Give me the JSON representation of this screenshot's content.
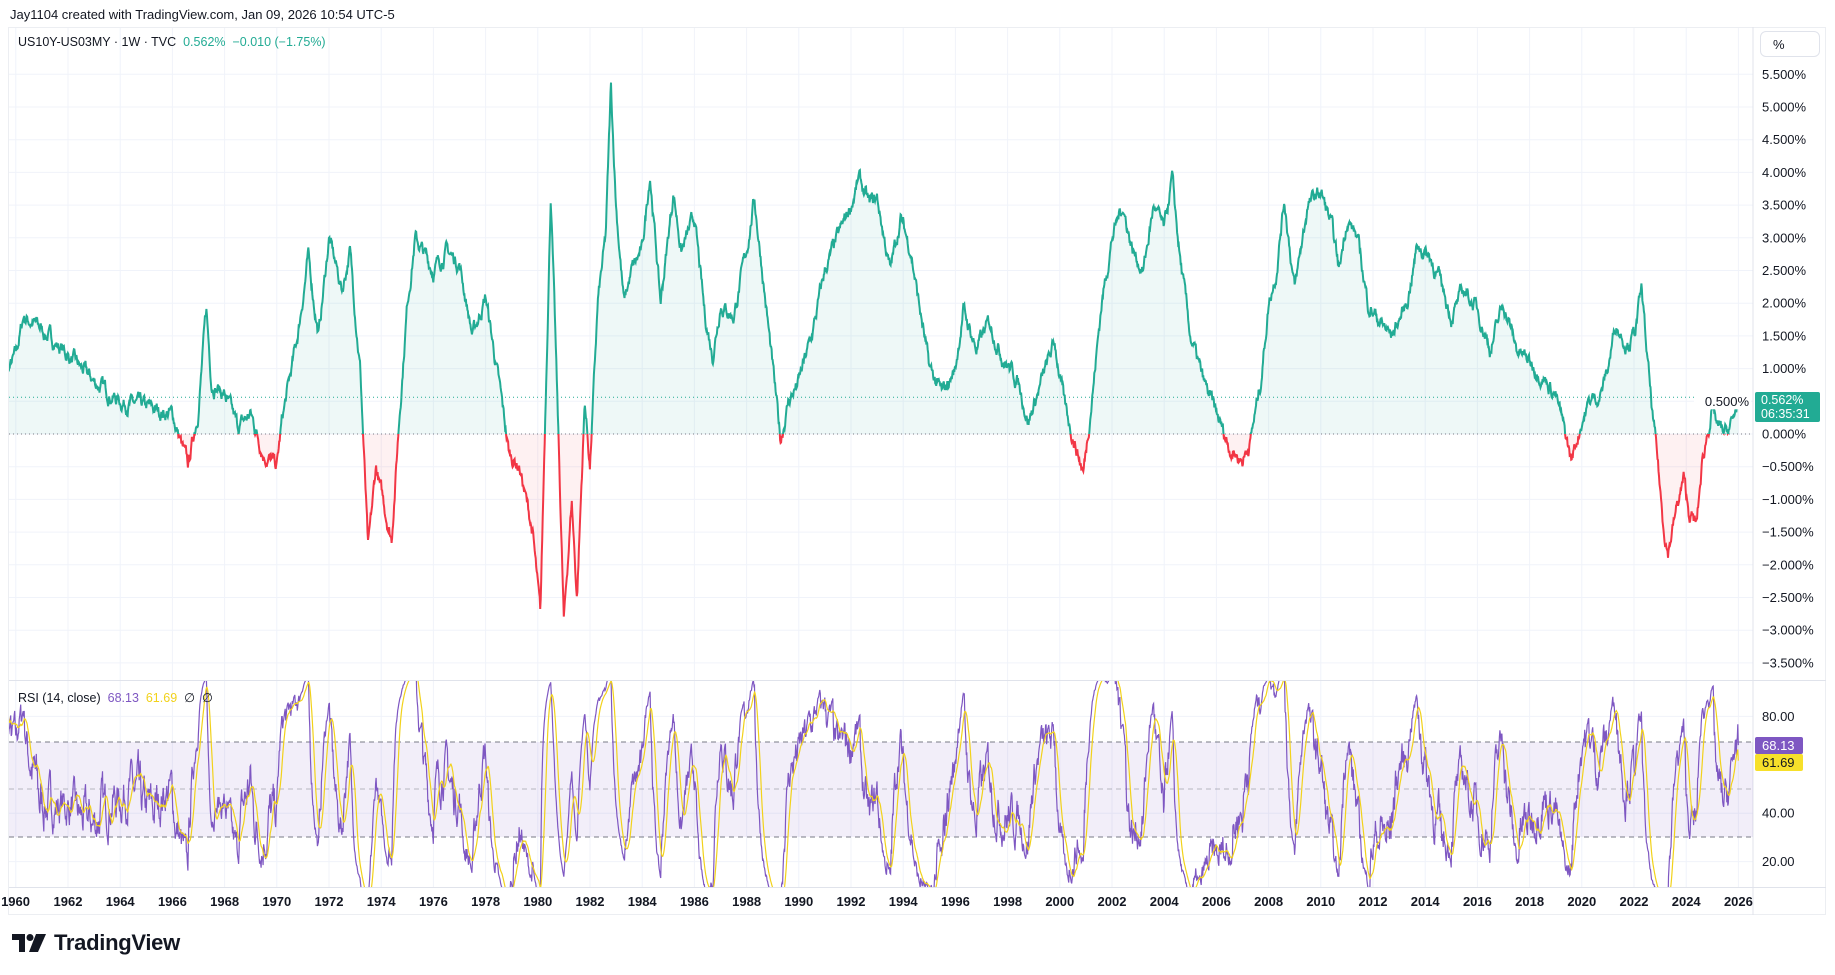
{
  "credit": "Jay1104 created with TradingView.com, Jan 09, 2026 10:54 UTC-5",
  "legend": {
    "symbol": "US10Y-US03MY · 1W · TVC",
    "last": "0.562%",
    "change": "−0.010 (−1.75%)"
  },
  "price_axis": {
    "unit_button": "%",
    "badge_value": "0.562%",
    "badge_timer": "06:35:31"
  },
  "rsi_legend": {
    "label": "RSI (14, close)",
    "rsi": "68.13",
    "ma": "61.69",
    "na1": "∅",
    "na2": "∅"
  },
  "rsi_badges": {
    "rsi": "68.13",
    "ma": "61.69"
  },
  "brand": {
    "name": "TradingView"
  },
  "colors": {
    "up": "#22ab94",
    "down": "#f23645",
    "rsi": "#7e57c2",
    "rsi_ma": "#f2d21b"
  },
  "chart_data": [
    {
      "type": "line",
      "title": "US10Y-US03MY · 1W · TVC",
      "ylabel": "%",
      "ylim": [
        -3.8,
        5.8
      ],
      "yticks": [
        "5.500%",
        "5.000%",
        "4.500%",
        "4.000%",
        "3.500%",
        "3.000%",
        "2.500%",
        "2.000%",
        "1.500%",
        "1.000%",
        "0.500%",
        "0.000%",
        "−0.500%",
        "−1.000%",
        "−1.500%",
        "−2.000%",
        "−2.500%",
        "−3.000%",
        "−3.500%"
      ],
      "ytick_values": [
        5.5,
        5,
        4.5,
        4,
        3.5,
        3,
        2.5,
        2,
        1.5,
        1,
        0.5,
        0,
        -0.5,
        -1,
        -1.5,
        -2,
        -2.5,
        -3,
        -3.5
      ],
      "xticks": [
        "1960",
        "1962",
        "1964",
        "1966",
        "1968",
        "1970",
        "1972",
        "1974",
        "1976",
        "1978",
        "1980",
        "1982",
        "1984",
        "1986",
        "1988",
        "1990",
        "1992",
        "1994",
        "1996",
        "1998",
        "2000",
        "2002",
        "2004",
        "2006",
        "2008",
        "2010",
        "2012",
        "2014",
        "2016",
        "2018",
        "2020",
        "2022",
        "2024",
        "2026"
      ],
      "last_value": 0.562,
      "points": [
        [
          1959.4,
          0.7
        ],
        [
          1960.0,
          1.2
        ],
        [
          1960.3,
          1.8
        ],
        [
          1961.0,
          1.6
        ],
        [
          1962.0,
          1.2
        ],
        [
          1963.0,
          0.8
        ],
        [
          1964.0,
          0.5
        ],
        [
          1965.0,
          0.4
        ],
        [
          1966.0,
          0.3
        ],
        [
          1966.6,
          -0.5
        ],
        [
          1967.0,
          0.4
        ],
        [
          1967.3,
          1.9
        ],
        [
          1967.5,
          0.8
        ],
        [
          1968.0,
          0.6
        ],
        [
          1968.5,
          0.1
        ],
        [
          1969.0,
          0.3
        ],
        [
          1969.5,
          -0.3
        ],
        [
          1970.0,
          -0.5
        ],
        [
          1970.2,
          0.2
        ],
        [
          1970.8,
          1.5
        ],
        [
          1971.2,
          2.7
        ],
        [
          1971.6,
          1.5
        ],
        [
          1972.0,
          3.0
        ],
        [
          1972.5,
          2.2
        ],
        [
          1972.8,
          2.8
        ],
        [
          1973.2,
          1.0
        ],
        [
          1973.5,
          -1.8
        ],
        [
          1973.8,
          -0.5
        ],
        [
          1974.0,
          -0.9
        ],
        [
          1974.4,
          -1.6
        ],
        [
          1974.7,
          0.3
        ],
        [
          1975.0,
          2.0
        ],
        [
          1975.3,
          3.0
        ],
        [
          1976.0,
          2.5
        ],
        [
          1976.5,
          2.8
        ],
        [
          1977.0,
          2.6
        ],
        [
          1977.5,
          1.5
        ],
        [
          1978.0,
          2.1
        ],
        [
          1978.5,
          0.8
        ],
        [
          1978.9,
          -0.3
        ],
        [
          1979.3,
          -0.5
        ],
        [
          1979.8,
          -1.5
        ],
        [
          1980.1,
          -2.8
        ],
        [
          1980.3,
          0.5
        ],
        [
          1980.5,
          3.7
        ],
        [
          1980.8,
          -0.2
        ],
        [
          1981.0,
          -2.9
        ],
        [
          1981.3,
          -1.0
        ],
        [
          1981.5,
          -2.5
        ],
        [
          1981.8,
          0.5
        ],
        [
          1982.0,
          -0.5
        ],
        [
          1982.3,
          2.0
        ],
        [
          1982.6,
          3.0
        ],
        [
          1982.8,
          5.3
        ],
        [
          1983.0,
          3.5
        ],
        [
          1983.3,
          2.0
        ],
        [
          1983.6,
          2.5
        ],
        [
          1984.0,
          2.8
        ],
        [
          1984.3,
          4.0
        ],
        [
          1984.7,
          2.0
        ],
        [
          1985.2,
          3.7
        ],
        [
          1985.5,
          2.8
        ],
        [
          1986.0,
          3.3
        ],
        [
          1986.4,
          1.8
        ],
        [
          1986.7,
          1.2
        ],
        [
          1987.0,
          2.0
        ],
        [
          1987.5,
          1.8
        ],
        [
          1988.0,
          2.8
        ],
        [
          1988.3,
          3.6
        ],
        [
          1988.6,
          2.5
        ],
        [
          1989.0,
          1.0
        ],
        [
          1989.3,
          -0.1
        ],
        [
          1989.6,
          0.5
        ],
        [
          1990.0,
          0.8
        ],
        [
          1990.5,
          1.5
        ],
        [
          1991.0,
          2.5
        ],
        [
          1991.5,
          3.0
        ],
        [
          1992.0,
          3.5
        ],
        [
          1992.3,
          3.9
        ],
        [
          1992.7,
          3.5
        ],
        [
          1993.0,
          3.6
        ],
        [
          1993.5,
          2.5
        ],
        [
          1993.9,
          3.3
        ],
        [
          1994.3,
          2.8
        ],
        [
          1994.6,
          2.0
        ],
        [
          1995.0,
          1.0
        ],
        [
          1995.5,
          0.6
        ],
        [
          1996.0,
          1.0
        ],
        [
          1996.3,
          1.9
        ],
        [
          1996.8,
          1.3
        ],
        [
          1997.3,
          1.7
        ],
        [
          1997.8,
          1.2
        ],
        [
          1998.4,
          0.8
        ],
        [
          1998.8,
          0.2
        ],
        [
          1999.3,
          0.8
        ],
        [
          1999.8,
          1.4
        ],
        [
          2000.2,
          0.4
        ],
        [
          2000.7,
          -0.3
        ],
        [
          2000.9,
          -0.6
        ],
        [
          2001.3,
          0.8
        ],
        [
          2001.6,
          2.0
        ],
        [
          2002.0,
          3.0
        ],
        [
          2002.4,
          3.5
        ],
        [
          2002.8,
          2.8
        ],
        [
          2003.2,
          2.5
        ],
        [
          2003.6,
          3.5
        ],
        [
          2004.0,
          3.1
        ],
        [
          2004.3,
          3.9
        ],
        [
          2004.6,
          2.7
        ],
        [
          2005.0,
          1.5
        ],
        [
          2005.5,
          0.8
        ],
        [
          2006.0,
          0.3
        ],
        [
          2006.5,
          -0.2
        ],
        [
          2007.0,
          -0.4
        ],
        [
          2007.3,
          -0.1
        ],
        [
          2007.7,
          0.8
        ],
        [
          2008.0,
          2.0
        ],
        [
          2008.3,
          2.5
        ],
        [
          2008.6,
          3.6
        ],
        [
          2009.0,
          2.2
        ],
        [
          2009.5,
          3.5
        ],
        [
          2010.0,
          3.7
        ],
        [
          2010.4,
          3.2
        ],
        [
          2010.7,
          2.5
        ],
        [
          2011.0,
          3.3
        ],
        [
          2011.4,
          3.0
        ],
        [
          2011.8,
          2.0
        ],
        [
          2012.3,
          1.7
        ],
        [
          2012.7,
          1.5
        ],
        [
          2013.3,
          2.0
        ],
        [
          2013.7,
          2.9
        ],
        [
          2014.2,
          2.7
        ],
        [
          2014.6,
          2.3
        ],
        [
          2015.0,
          1.8
        ],
        [
          2015.5,
          2.2
        ],
        [
          2016.0,
          1.9
        ],
        [
          2016.5,
          1.3
        ],
        [
          2017.0,
          2.0
        ],
        [
          2017.5,
          1.3
        ],
        [
          2018.0,
          1.1
        ],
        [
          2018.5,
          0.9
        ],
        [
          2019.0,
          0.6
        ],
        [
          2019.3,
          0.1
        ],
        [
          2019.6,
          -0.4
        ],
        [
          2020.0,
          0.2
        ],
        [
          2020.3,
          0.5
        ],
        [
          2020.7,
          0.6
        ],
        [
          2021.0,
          1.0
        ],
        [
          2021.3,
          1.7
        ],
        [
          2021.7,
          1.4
        ],
        [
          2022.0,
          1.5
        ],
        [
          2022.3,
          2.2
        ],
        [
          2022.5,
          1.2
        ],
        [
          2022.7,
          0.3
        ],
        [
          2022.9,
          -0.4
        ],
        [
          2023.1,
          -1.3
        ],
        [
          2023.3,
          -1.8
        ],
        [
          2023.6,
          -1.2
        ],
        [
          2023.9,
          -0.7
        ],
        [
          2024.1,
          -1.2
        ],
        [
          2024.4,
          -1.4
        ],
        [
          2024.6,
          -0.5
        ],
        [
          2024.8,
          0.0
        ],
        [
          2025.0,
          0.4
        ],
        [
          2025.2,
          0.1
        ],
        [
          2025.5,
          0.0
        ],
        [
          2025.8,
          0.2
        ],
        [
          2026.0,
          0.562
        ]
      ]
    },
    {
      "type": "line",
      "title": "RSI (14, close)",
      "ylim": [
        10,
        90
      ],
      "yticks": [
        "80.00",
        "40.00",
        "20.00"
      ],
      "ytick_values": [
        80,
        40,
        20
      ],
      "bands": {
        "upper": 70,
        "middle": 50,
        "lower": 30
      },
      "last_rsi": 68.13,
      "last_ma": 61.69,
      "ma_length": 14
    }
  ]
}
